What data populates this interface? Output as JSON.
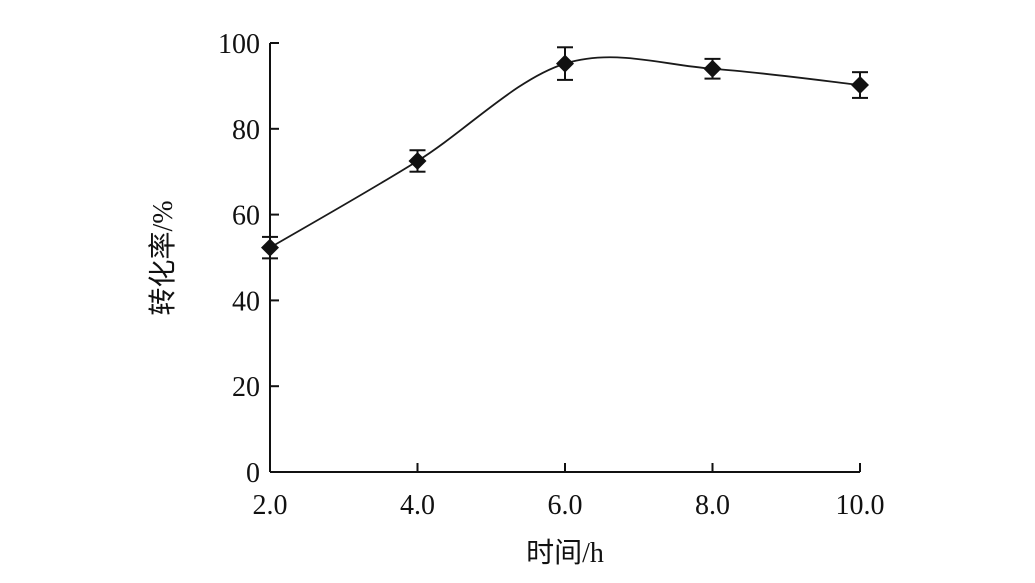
{
  "chart_data": {
    "type": "line",
    "xlabel": "时间/h",
    "ylabel": "转化率/%",
    "x_ticks": [
      "2.0",
      "4.0",
      "6.0",
      "8.0",
      "10.0"
    ],
    "y_ticks": [
      "0",
      "20",
      "40",
      "60",
      "80",
      "100"
    ],
    "xlim": [
      2.0,
      10.0
    ],
    "ylim": [
      0,
      100
    ],
    "grid": false,
    "marker": "diamond",
    "line_color": "#1a1a1a",
    "series": [
      {
        "x": [
          2.0,
          4.0,
          6.0,
          8.0,
          10.0
        ],
        "y": [
          52.3,
          72.5,
          95.2,
          94.0,
          90.2
        ],
        "error": [
          2.5,
          2.5,
          3.8,
          2.3,
          3.0
        ]
      }
    ]
  }
}
